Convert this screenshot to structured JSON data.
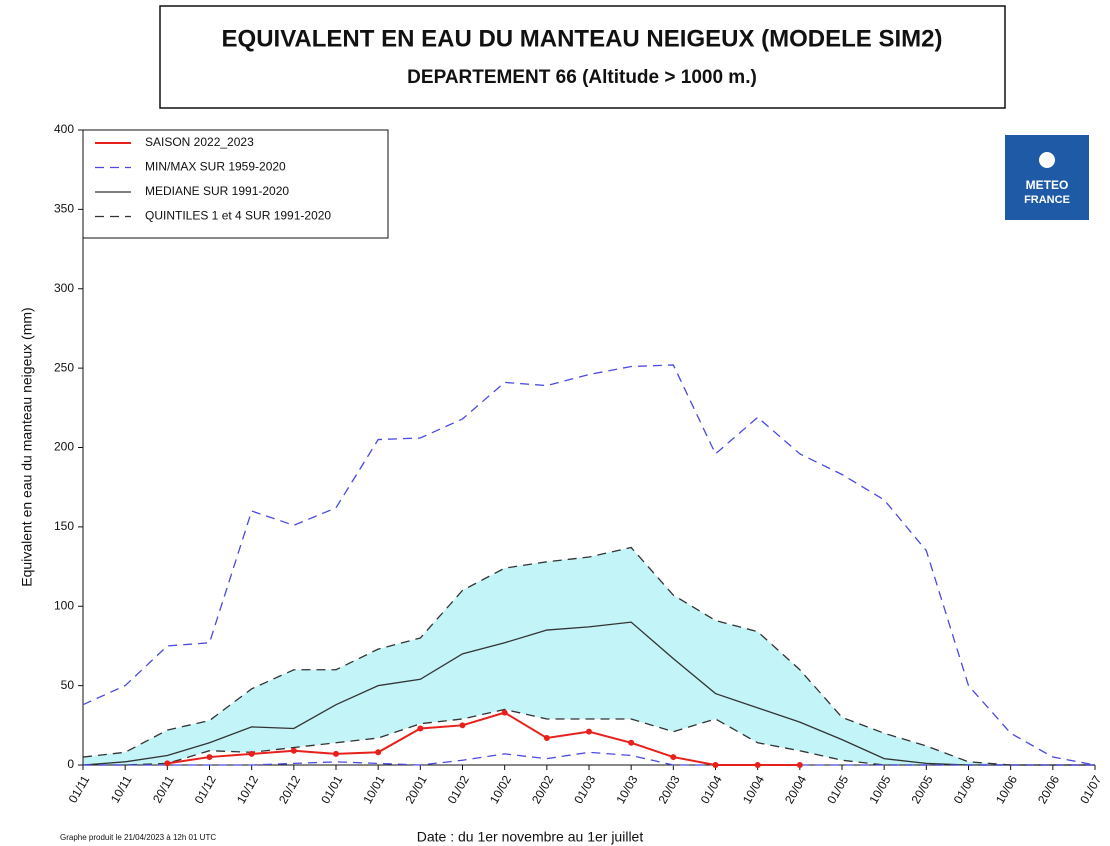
{
  "chart_data": {
    "type": "line",
    "title": "EQUIVALENT EN EAU DU MANTEAU NEIGEUX (MODELE SIM2)",
    "subtitle": "DEPARTEMENT 66  (Altitude > 1000 m.)",
    "ylabel": "Equivalent en eau du manteau neigeux (mm)",
    "xlabel": "Date : du 1er novembre au 1er juillet",
    "note": "Graphe produit le 21/04/2023 à 12h 01 UTC",
    "logo": [
      "METEO",
      "FRANCE"
    ],
    "categories": [
      "01/11",
      "10/11",
      "20/11",
      "01/12",
      "10/12",
      "20/12",
      "01/01",
      "10/01",
      "20/01",
      "01/02",
      "10/02",
      "20/02",
      "01/03",
      "10/03",
      "20/03",
      "01/04",
      "10/04",
      "20/04",
      "01/05",
      "10/05",
      "20/05",
      "01/06",
      "10/06",
      "20/06",
      "01/07"
    ],
    "ylim": [
      0,
      400
    ],
    "yticks": [
      0,
      50,
      100,
      150,
      200,
      250,
      300,
      350,
      400
    ],
    "band_color": "#c2f4f8",
    "series": [
      {
        "name": "SAISON 2022_2023",
        "color": "#e8201c",
        "dash": "solid",
        "markers": true,
        "values": [
          null,
          null,
          1,
          5,
          7,
          9,
          7,
          8,
          23,
          25,
          33,
          17,
          21,
          14,
          5,
          0,
          0,
          0,
          null,
          null,
          null,
          null,
          null,
          null,
          null
        ]
      },
      {
        "name": "MIN/MAX SUR 1959-2020",
        "color": "#4a4ae0",
        "dash": "dashed",
        "lower": [
          0,
          0,
          0,
          0,
          0,
          1,
          2,
          1,
          0,
          3,
          7,
          4,
          8,
          6,
          0,
          0,
          0,
          0,
          0,
          0,
          0,
          0,
          0,
          0,
          0
        ],
        "upper": [
          38,
          50,
          75,
          77,
          160,
          151,
          162,
          205,
          206,
          218,
          241,
          239,
          246,
          251,
          252,
          196,
          219,
          196,
          183,
          167,
          135,
          50,
          20,
          5,
          0
        ]
      },
      {
        "name": "MEDIANE SUR 1991-2020",
        "color": "#333333",
        "dash": "solid",
        "values": [
          0,
          2,
          6,
          14,
          24,
          23,
          38,
          50,
          54,
          70,
          77,
          85,
          87,
          90,
          67,
          45,
          36,
          27,
          16,
          4,
          1,
          0,
          0,
          0,
          0
        ]
      },
      {
        "name": "QUINTILES 1 et 4 SUR 1991-2020",
        "color": "#333333",
        "dash": "dashed",
        "band": true,
        "lower": [
          0,
          0,
          1,
          9,
          8,
          11,
          14,
          17,
          26,
          29,
          35,
          29,
          29,
          29,
          21,
          29,
          14,
          9,
          3,
          0,
          0,
          0,
          0,
          0,
          0
        ],
        "upper": [
          5,
          8,
          22,
          28,
          48,
          60,
          60,
          73,
          80,
          110,
          124,
          128,
          131,
          137,
          107,
          91,
          84,
          60,
          30,
          20,
          12,
          2,
          0,
          0,
          0
        ]
      }
    ]
  }
}
